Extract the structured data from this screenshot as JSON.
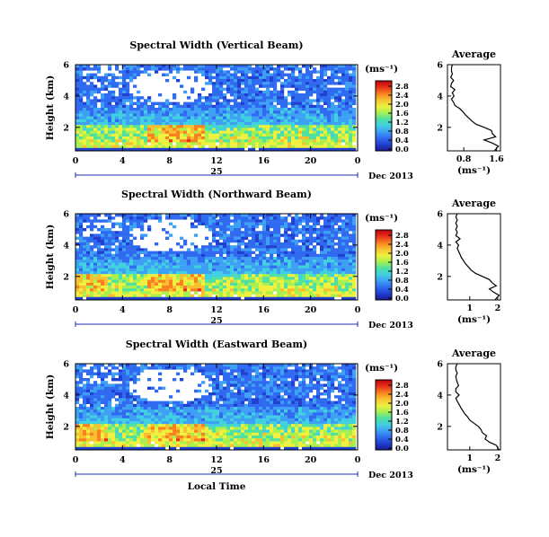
{
  "chart_data": [
    {
      "type": "heatmap",
      "title": "Spectral Width (Vertical Beam)",
      "ylabel": "Height (km)",
      "xlabel": "",
      "xlim": [
        0,
        24
      ],
      "ylim": [
        0.5,
        6
      ],
      "x_ticks": [
        "0",
        "4",
        "8",
        "12",
        "16",
        "20",
        "0"
      ],
      "y_ticks": [
        "2",
        "4",
        "6"
      ],
      "date_day": "25",
      "date_label": "Dec 2013",
      "colorbar": {
        "unit": "(ms⁻¹)",
        "ticks": [
          "0.0",
          "0.4",
          "0.8",
          "1.2",
          "1.6",
          "2.0",
          "2.4",
          "2.8"
        ],
        "range": [
          0,
          3.0
        ]
      },
      "average_profile": {
        "title": "Average",
        "xlabel": "(ms⁻¹)",
        "x_ticks": [
          "0.8",
          "1.6"
        ],
        "xlim": [
          0.4,
          1.7
        ],
        "y_ticks": [
          "2",
          "4",
          "6"
        ],
        "ylim": [
          0.5,
          6
        ],
        "heights": [
          0.5,
          0.8,
          1.0,
          1.2,
          1.4,
          1.6,
          1.8,
          2.0,
          2.2,
          2.4,
          2.6,
          2.8,
          3.0,
          3.2,
          3.4,
          3.6,
          3.8,
          4.0,
          4.2,
          4.4,
          4.6,
          4.8,
          5.0,
          5.2,
          5.4,
          5.6,
          5.8,
          6.0
        ],
        "values": [
          1.55,
          1.65,
          1.5,
          1.3,
          1.58,
          1.5,
          1.48,
          1.3,
          1.1,
          1.0,
          0.92,
          0.84,
          0.78,
          0.7,
          0.58,
          0.55,
          0.5,
          0.56,
          0.52,
          0.58,
          0.48,
          0.5,
          0.55,
          0.48,
          0.52,
          0.5,
          0.5,
          0.52
        ]
      }
    },
    {
      "type": "heatmap",
      "title": "Spectral Width (Northward Beam)",
      "ylabel": "Height (km)",
      "xlabel": "",
      "xlim": [
        0,
        24
      ],
      "ylim": [
        0.5,
        6
      ],
      "x_ticks": [
        "0",
        "4",
        "8",
        "12",
        "16",
        "20",
        "0"
      ],
      "y_ticks": [
        "2",
        "4",
        "6"
      ],
      "date_day": "25",
      "date_label": "Dec 2013",
      "colorbar": {
        "unit": "(ms⁻¹)",
        "ticks": [
          "0.0",
          "0.4",
          "0.8",
          "1.2",
          "1.6",
          "2.0",
          "2.4",
          "2.8"
        ],
        "range": [
          0,
          3.0
        ]
      },
      "average_profile": {
        "title": "Average",
        "xlabel": "(ms⁻¹)",
        "x_ticks": [
          "1",
          "2"
        ],
        "xlim": [
          0.2,
          2.1
        ],
        "y_ticks": [
          "2",
          "4",
          "6"
        ],
        "ylim": [
          0.5,
          6
        ],
        "heights": [
          0.5,
          0.8,
          1.0,
          1.2,
          1.4,
          1.6,
          1.8,
          2.0,
          2.2,
          2.4,
          2.6,
          2.8,
          3.0,
          3.2,
          3.4,
          3.6,
          3.8,
          4.0,
          4.2,
          4.4,
          4.6,
          4.8,
          5.0,
          5.2,
          5.4,
          5.6,
          5.8,
          6.0
        ],
        "values": [
          1.9,
          2.05,
          1.85,
          1.7,
          1.95,
          1.8,
          1.7,
          1.45,
          1.2,
          1.05,
          0.95,
          0.85,
          0.78,
          0.7,
          0.65,
          0.6,
          0.55,
          0.6,
          0.5,
          0.65,
          0.5,
          0.55,
          0.5,
          0.55,
          0.5,
          0.55,
          0.5,
          0.55
        ]
      }
    },
    {
      "type": "heatmap",
      "title": "Spectral Width (Eastward Beam)",
      "ylabel": "Height (km)",
      "xlabel": "Local Time",
      "xlim": [
        0,
        24
      ],
      "ylim": [
        0.5,
        6
      ],
      "x_ticks": [
        "0",
        "4",
        "8",
        "12",
        "16",
        "20",
        "0"
      ],
      "y_ticks": [
        "2",
        "4",
        "6"
      ],
      "date_day": "25",
      "date_label": "Dec 2013",
      "colorbar": {
        "unit": "(ms⁻¹)",
        "ticks": [
          "0.0",
          "0.4",
          "0.8",
          "1.2",
          "1.6",
          "2.0",
          "2.4",
          "2.8"
        ],
        "range": [
          0,
          3.0
        ]
      },
      "average_profile": {
        "title": "Average",
        "xlabel": "(ms⁻¹)",
        "x_ticks": [
          "1",
          "2"
        ],
        "xlim": [
          0.2,
          2.1
        ],
        "y_ticks": [
          "2",
          "4",
          "6"
        ],
        "ylim": [
          0.5,
          6
        ],
        "heights": [
          0.5,
          0.8,
          1.0,
          1.2,
          1.4,
          1.6,
          1.8,
          2.0,
          2.2,
          2.4,
          2.6,
          2.8,
          3.0,
          3.2,
          3.4,
          3.6,
          3.8,
          4.0,
          4.2,
          4.4,
          4.6,
          4.8,
          5.0,
          5.2,
          5.4,
          5.6,
          5.8,
          6.0
        ],
        "values": [
          2.05,
          1.95,
          1.7,
          1.55,
          1.6,
          1.45,
          1.4,
          1.3,
          1.15,
          1.0,
          0.92,
          0.82,
          0.75,
          0.68,
          0.62,
          0.55,
          0.5,
          0.62,
          0.5,
          0.5,
          0.6,
          0.55,
          0.52,
          0.5,
          0.55,
          0.5,
          0.5,
          0.55
        ]
      }
    }
  ],
  "colormap": [
    "#1a1a90",
    "#2040d0",
    "#2f6af0",
    "#3ea0f5",
    "#40d0e0",
    "#50e0a0",
    "#a8f050",
    "#f0f040",
    "#f8c030",
    "#f88020",
    "#e83018",
    "#c00010"
  ]
}
